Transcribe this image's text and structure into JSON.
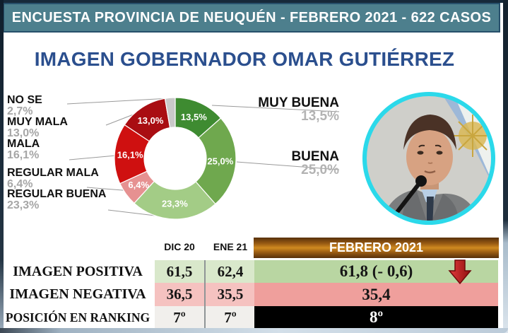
{
  "banner": {
    "text": "ENCUESTA PROVINCIA DE NEUQUÉN - FEBRERO 2021 - 622 CASOS"
  },
  "title": "IMAGEN GOBERNADOR OMAR GUTIÉRREZ",
  "chart_data": {
    "type": "pie",
    "style": "donut",
    "title": "Imagen Gobernador Omar Gutiérrez",
    "direction": "clockwise",
    "start_angle_deg": 0,
    "inner_labels_show_percent": true,
    "segments": [
      {
        "label": "MUY BUENA",
        "value": 13.5,
        "display": "13,5%",
        "color": "#3e8b31"
      },
      {
        "label": "BUENA",
        "value": 25.0,
        "display": "25,0%",
        "color": "#6fa84e"
      },
      {
        "label": "REGULAR BUENA",
        "value": 23.3,
        "display": "23,3%",
        "color": "#a3cc86"
      },
      {
        "label": "REGULAR MALA",
        "value": 6.4,
        "display": "6,4%",
        "color": "#e69191"
      },
      {
        "label": "MALA",
        "value": 16.1,
        "display": "16,1%",
        "color": "#cf1010"
      },
      {
        "label": "MUY MALA",
        "value": 13.0,
        "display": "13,0%",
        "color": "#a90d12"
      },
      {
        "label": "NO SE",
        "value": 2.7,
        "display": "2,7%",
        "color": "#c9c9c9"
      }
    ]
  },
  "photo": {
    "description": "Governor Omar Gutiérrez speaking into a microphone, Argentine flag behind",
    "ring_color": "#2bd9ea"
  },
  "table": {
    "columns": {
      "dic": "DIC 20",
      "ene": "ENE 21",
      "feb": "FEBRERO 2021"
    },
    "rows": [
      {
        "label": "IMAGEN POSITIVA",
        "dic": "61,5",
        "ene": "62,4",
        "feb": "61,8 (- 0,6)",
        "trend": "down"
      },
      {
        "label": "IMAGEN NEGATIVA",
        "dic": "36,5",
        "ene": "35,5",
        "feb": "35,4"
      },
      {
        "label": "POSICIÓN EN RANKING",
        "dic": "7º",
        "ene": "7º",
        "feb": "8º"
      }
    ]
  },
  "colors": {
    "banner_bg": "#4d7f8d",
    "title_text": "#2b4f8e",
    "positive_row_green": "#b9d6a2",
    "negative_row_pink": "#ef9f9c",
    "ranking_cell_black": "#000000",
    "feb_header_orange": "#cf8a20",
    "trend_arrow_red": "#c41425",
    "photo_ring_cyan": "#2bd9ea"
  }
}
